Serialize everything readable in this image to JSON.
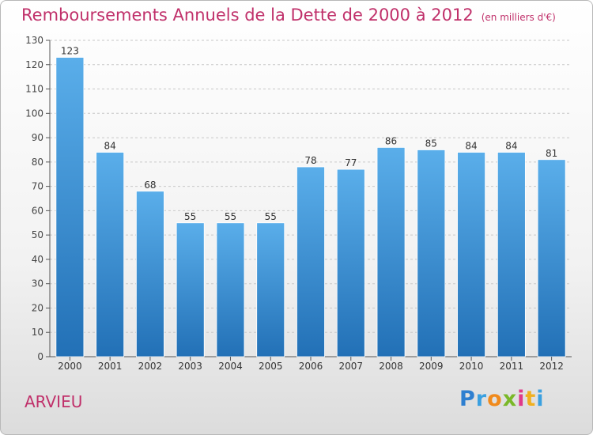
{
  "header": {
    "title": "Remboursements Annuels de la Dette de 2000 à 2012",
    "subtitle": "(en milliers d'€)"
  },
  "footer": {
    "commune": "ARVIEU",
    "logo": {
      "letters": [
        "P",
        "r",
        "o",
        "x",
        "i",
        "t",
        "i"
      ],
      "colors": [
        "#2e7fd0",
        "#3aa0e0",
        "#f08a1c",
        "#7ab828",
        "#e03a8a",
        "#f0b020",
        "#3aa0e0"
      ]
    }
  },
  "colors": {
    "bar_top": "#5aaeea",
    "bar_bottom": "#2270b6",
    "axis": "#555555",
    "grid": "#c8c8c8"
  },
  "chart_data": {
    "type": "bar",
    "categories": [
      "2000",
      "2001",
      "2002",
      "2003",
      "2004",
      "2005",
      "2006",
      "2007",
      "2008",
      "2009",
      "2010",
      "2011",
      "2012"
    ],
    "values": [
      123,
      84,
      68,
      55,
      55,
      55,
      78,
      77,
      86,
      85,
      84,
      84,
      81
    ],
    "title": "Remboursements Annuels de la Dette de 2000 à 2012",
    "subtitle": "(en milliers d'€)",
    "ylim": [
      0,
      130
    ],
    "yticks": [
      0,
      10,
      20,
      30,
      40,
      50,
      60,
      70,
      80,
      90,
      100,
      110,
      120,
      130
    ],
    "grid": true,
    "data_labels": true
  }
}
